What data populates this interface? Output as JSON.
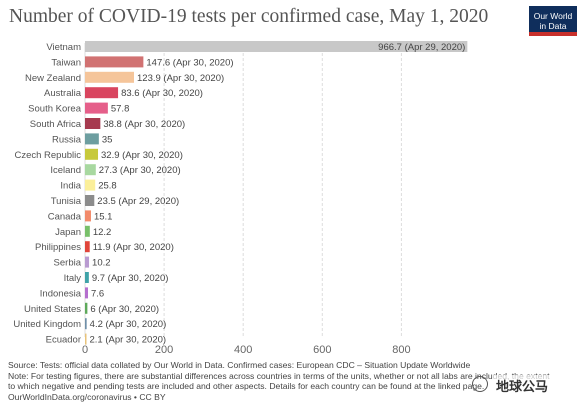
{
  "header": {
    "title": "Number of COVID-19 tests per confirmed case, May 1, 2020",
    "logo_line1": "Our World",
    "logo_line2": "in Data"
  },
  "chart_data": {
    "type": "bar",
    "orientation": "horizontal",
    "title": "Number of COVID-19 tests per confirmed case, May 1, 2020",
    "xlim": [
      0,
      966.7
    ],
    "x_ticks": [
      0,
      200,
      400,
      600,
      800
    ],
    "grid": true,
    "categories": [
      "Vietnam",
      "Taiwan",
      "New Zealand",
      "Australia",
      "South Korea",
      "South Africa",
      "Russia",
      "Czech Republic",
      "Iceland",
      "India",
      "Tunisia",
      "Canada",
      "Japan",
      "Philippines",
      "Serbia",
      "Italy",
      "Indonesia",
      "United States",
      "United Kingdom",
      "Ecuador"
    ],
    "values": [
      966.7,
      147.6,
      123.9,
      83.6,
      57.8,
      38.8,
      35,
      32.9,
      27.3,
      25.8,
      23.5,
      15.1,
      12.2,
      11.9,
      10.2,
      9.7,
      7.6,
      6,
      4.2,
      2.1
    ],
    "value_labels": [
      "966.7 (Apr 29, 2020)",
      "147.6 (Apr 30, 2020)",
      "123.9 (Apr 30, 2020)",
      "83.6 (Apr 30, 2020)",
      "57.8",
      "38.8 (Apr 30, 2020)",
      "35",
      "32.9 (Apr 30, 2020)",
      "27.3 (Apr 30, 2020)",
      "25.8",
      "23.5 (Apr 29, 2020)",
      "15.1",
      "12.2",
      "11.9 (Apr 30, 2020)",
      "10.2",
      "9.7 (Apr 30, 2020)",
      "7.6",
      "6 (Apr 30, 2020)",
      "4.2 (Apr 30, 2020)",
      "2.1 (Apr 30, 2020)"
    ],
    "colors": [
      "#c8c8c8",
      "#d17272",
      "#f5c59a",
      "#d9455f",
      "#e55f8a",
      "#a63a4f",
      "#6d9ea0",
      "#c7c93b",
      "#a8d8a0",
      "#fbef9a",
      "#8c8c8c",
      "#f28b6b",
      "#78c06a",
      "#e0453a",
      "#b99bd1",
      "#3fa3a8",
      "#b56fce",
      "#5da95a",
      "#6f8fa8",
      "#e8c37a"
    ]
  },
  "footer": {
    "line1": "Source: Tests: official data collated by Our World in Data. Confirmed cases: European CDC – Situation Update Worldwide",
    "line2": "Note: For testing figures, there are substantial differences across countries in terms of the units, whether or not all labs are included, the extent",
    "line3": "to which negative and pending tests are included and other aspects. Details for each country can be found at the linked page.",
    "line4": "OurWorldInData.org/coronavirus • CC BY"
  },
  "watermark": "地球公马"
}
